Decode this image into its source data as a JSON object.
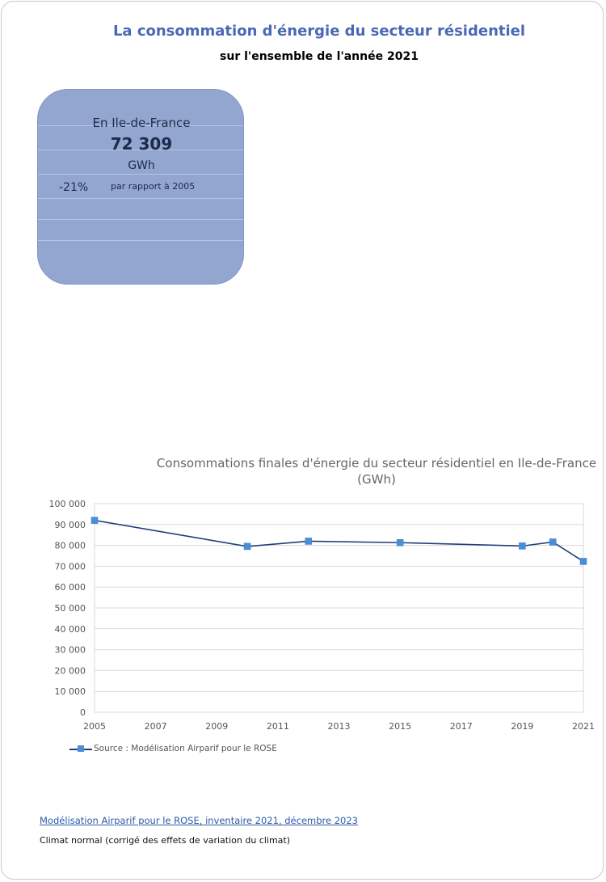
{
  "header": {
    "title": "La consommation d'énergie du secteur résidentiel",
    "subtitle": "sur l'ensemble de l'année 2021"
  },
  "kpi": {
    "region": "En Ile-de-France",
    "value": "72 309",
    "unit": "GWh",
    "change": "-21%",
    "change_ref": "par rapport à 2005"
  },
  "chart_data": {
    "type": "line",
    "title": "Consommations finales d'énergie du secteur résidentiel en Ile-de-France (GWh)",
    "x": [
      2005,
      2010,
      2012,
      2015,
      2019,
      2020,
      2021
    ],
    "series": [
      {
        "name": "Source : Modélisation Airparif pour le ROSE",
        "values": [
          92000,
          79500,
          82000,
          81300,
          79700,
          81600,
          72309
        ]
      }
    ],
    "xticks": [
      "2005",
      "2007",
      "2009",
      "2011",
      "2013",
      "2015",
      "2017",
      "2019",
      "2021"
    ],
    "yticks": [
      "0",
      "10 000",
      "20 000",
      "30 000",
      "40 000",
      "50 000",
      "60 000",
      "70 000",
      "80 000",
      "90 000",
      "100 000"
    ],
    "ylim": [
      0,
      100000
    ],
    "xlim": [
      2005,
      2021
    ],
    "grid": true,
    "legend": "bottom-left",
    "colors": {
      "line": "#1f3f7a",
      "marker": "#4a8fd6",
      "grid": "#d9d9d9",
      "axis_text": "#555555"
    }
  },
  "footer": {
    "source_link": "Modélisation Airparif pour le ROSE, inventaire 2021, décembre 2023",
    "note": "Climat normal (corrigé des effets de variation du climat)"
  }
}
